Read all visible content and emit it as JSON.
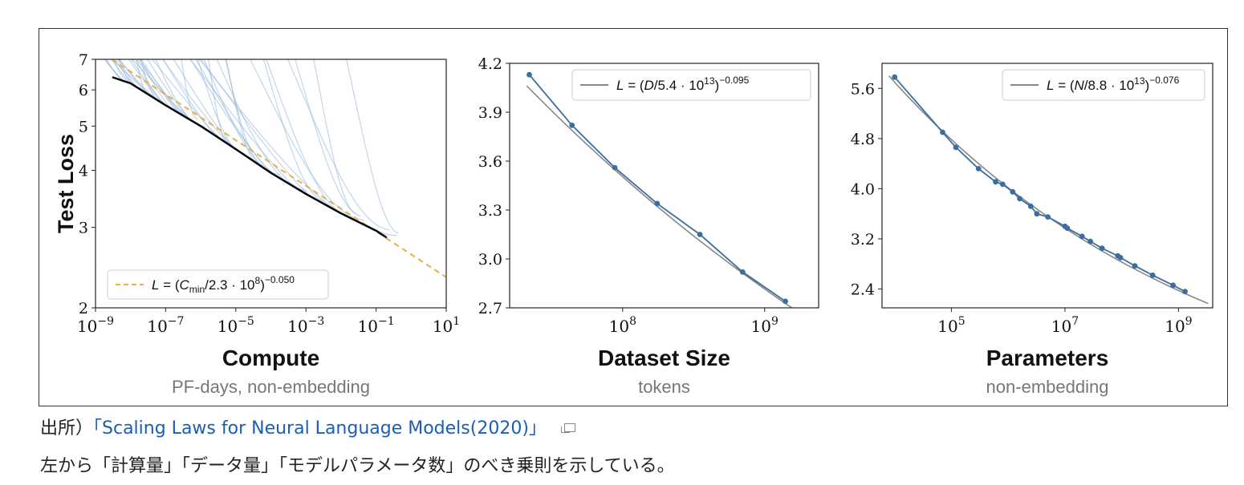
{
  "chart_data": [
    {
      "type": "line",
      "title": "",
      "xlabel": "Compute",
      "xlabel_sub": "PF-days, non-embedding",
      "ylabel": "Test Loss",
      "xscale": "log",
      "yscale": "log",
      "xlim": [
        1e-09,
        10
      ],
      "ylim": [
        2,
        7
      ],
      "xticks": [
        {
          "v": 1e-09,
          "base": "10",
          "exp": "−9"
        },
        {
          "v": 1e-07,
          "base": "10",
          "exp": "−7"
        },
        {
          "v": 1e-05,
          "base": "10",
          "exp": "−5"
        },
        {
          "v": 0.001,
          "base": "10",
          "exp": "−3"
        },
        {
          "v": 0.1,
          "base": "10",
          "exp": "−1"
        },
        {
          "v": 10,
          "base": "10",
          "exp": "1"
        }
      ],
      "yticks": [
        {
          "v": 2,
          "label": "2"
        },
        {
          "v": 3,
          "label": "3"
        },
        {
          "v": 4,
          "label": "4"
        },
        {
          "v": 5,
          "label": "5"
        },
        {
          "v": 6,
          "label": "6"
        },
        {
          "v": 7,
          "label": "7"
        }
      ],
      "fit": {
        "name": "L = (Cmin/2.3·10^8)^−0.050",
        "c0": 230000000.0,
        "alpha": 0.05,
        "style": "dashed",
        "color": "#e8b04a"
      },
      "frontier": {
        "color": "#000000",
        "x": [
          3e-09,
          1e-08,
          1e-07,
          1e-06,
          1e-05,
          0.0001,
          0.001,
          0.01,
          0.1,
          0.2
        ],
        "y": [
          6.4,
          6.2,
          5.55,
          5.0,
          4.45,
          3.95,
          3.55,
          3.22,
          2.95,
          2.85
        ]
      },
      "runs_color": "#8fb3d9",
      "legend": {
        "position": "lower-left"
      }
    },
    {
      "type": "line",
      "title": "",
      "xlabel": "Dataset Size",
      "xlabel_sub": "tokens",
      "ylabel": "",
      "xscale": "log",
      "xlim": [
        16000000.0,
        2400000000.0
      ],
      "ylim": [
        2.7,
        4.2
      ],
      "xticks": [
        {
          "v": 100000000.0,
          "base": "10",
          "exp": "8"
        },
        {
          "v": 1000000000.0,
          "base": "10",
          "exp": "9"
        }
      ],
      "yticks": [
        {
          "v": 2.7,
          "label": "2.7"
        },
        {
          "v": 3.0,
          "label": "3.0"
        },
        {
          "v": 3.3,
          "label": "3.3"
        },
        {
          "v": 3.6,
          "label": "3.6"
        },
        {
          "v": 3.9,
          "label": "3.9"
        },
        {
          "v": 4.2,
          "label": "4.2"
        }
      ],
      "series": [
        {
          "x": [
            22000000.0,
            44000000.0,
            88000000.0,
            175000000.0,
            350000000.0,
            700000000.0,
            1400000000.0
          ],
          "y": [
            4.13,
            3.82,
            3.56,
            3.34,
            3.15,
            2.92,
            2.74
          ],
          "color": "#3b6e9e"
        }
      ],
      "fit": {
        "name": "L = (D/5.4·10^13)^−0.095",
        "c0": 54000000000000.0,
        "alpha": 0.095,
        "color": "#888888"
      },
      "legend": {
        "position": "top-right"
      }
    },
    {
      "type": "line",
      "title": "",
      "xlabel": "Parameters",
      "xlabel_sub": "non-embedding",
      "ylabel": "",
      "xscale": "log",
      "xlim": [
        6000.0,
        4000000000.0
      ],
      "ylim": [
        2.1,
        6.0
      ],
      "xticks": [
        {
          "v": 100000.0,
          "base": "10",
          "exp": "5"
        },
        {
          "v": 10000000.0,
          "base": "10",
          "exp": "7"
        },
        {
          "v": 1000000000.0,
          "base": "10",
          "exp": "9"
        }
      ],
      "yticks": [
        {
          "v": 2.4,
          "label": "2.4"
        },
        {
          "v": 3.2,
          "label": "3.2"
        },
        {
          "v": 4.0,
          "label": "4.0"
        },
        {
          "v": 4.8,
          "label": "4.8"
        },
        {
          "v": 5.6,
          "label": "5.6"
        }
      ],
      "series": [
        {
          "x": [
            10000.0,
            70000.0,
            120000.0,
            300000.0,
            600000.0,
            800000.0,
            1200000.0,
            1600000.0,
            2500000.0,
            3200000.0,
            5000000.0,
            10000000.0,
            11000000.0,
            20000000.0,
            28000000.0,
            45000000.0,
            85000000.0,
            95000000.0,
            170000000.0,
            350000000.0,
            800000000.0,
            1300000000.0
          ],
          "y": [
            5.78,
            4.9,
            4.66,
            4.32,
            4.11,
            4.07,
            3.95,
            3.84,
            3.72,
            3.6,
            3.55,
            3.4,
            3.37,
            3.24,
            3.16,
            3.05,
            2.93,
            2.9,
            2.77,
            2.62,
            2.46,
            2.36
          ],
          "color": "#3b6e9e"
        }
      ],
      "fit": {
        "name": "L = (N/8.8·10^13)^−0.076",
        "c0": 88000000000000.0,
        "alpha": 0.076,
        "color": "#888888"
      },
      "legend": {
        "position": "top-right"
      }
    }
  ],
  "caption": {
    "source_prefix": "出所）",
    "source_link": "「Scaling Laws for Neural Language Models(2020)」",
    "description": "左から「計算量」「データ量」「モデルパラメータ数」のべき乗則を示している。"
  },
  "icons": {
    "external_link": "external-link-icon"
  }
}
